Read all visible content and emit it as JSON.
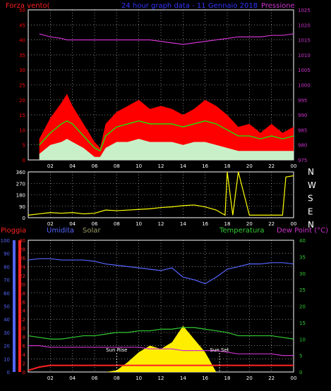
{
  "colors": {
    "background": "#000000",
    "axis": "#ffffff",
    "grid": "#ffffff",
    "wind_gust": "#ff0000",
    "wind_avg": "#00ff00",
    "wind_min": "#c8f0c8",
    "pressure": "#cc33cc",
    "direction": "#ffff00",
    "rain": "#ff2222",
    "humidity": "#5566ff",
    "solar": "#ffee00",
    "temperature": "#33cc33",
    "dew_point": "#cc33cc",
    "sun_marker": "#ffffff"
  },
  "header": {
    "left": "Forza vento(",
    "center": "24 hour graph data - 11 Gennaio 2018",
    "right": "Pressione"
  },
  "dir_labels": [
    "N",
    "W",
    "S",
    "E",
    "N"
  ],
  "bottom_labels": {
    "rain": "Pioggia",
    "humidity": "Umidita",
    "solar": "Solar",
    "temperature": "Temperatura",
    "dew_point": "Dew Point (°C)"
  },
  "sun_rise_label": "Sun Rise",
  "sun_set_label": "Sun Set",
  "x_ticks": [
    "02",
    "04",
    "06",
    "08",
    "10",
    "12",
    "14",
    "16",
    "18",
    "20",
    "22",
    "00"
  ],
  "chart_data": [
    {
      "type": "line",
      "name": "wind-pressure",
      "x_hours": [
        1,
        2,
        3,
        3.5,
        4,
        5,
        6,
        6.5,
        7,
        8,
        9,
        10,
        11,
        12,
        13,
        14,
        15,
        16,
        17,
        18,
        19,
        20,
        21,
        22,
        23,
        24
      ],
      "series": [
        {
          "name": "gust",
          "values": [
            7,
            14,
            19,
            22,
            18,
            12,
            6,
            4,
            12,
            16,
            18,
            20,
            17,
            18,
            17,
            15,
            17,
            20,
            18,
            15,
            11,
            12,
            9,
            12,
            9,
            11
          ]
        },
        {
          "name": "average",
          "values": [
            5,
            9,
            12,
            13,
            12,
            8,
            4,
            3,
            8,
            11,
            12,
            13,
            12,
            12,
            12,
            11,
            12,
            13,
            12,
            10,
            8,
            8,
            7,
            8,
            7,
            8
          ]
        },
        {
          "name": "minimum",
          "values": [
            2,
            5,
            6,
            7,
            6,
            4,
            1,
            1,
            4,
            6,
            6,
            7,
            6,
            6,
            6,
            5,
            6,
            6,
            5,
            4,
            3,
            3,
            3,
            3,
            3,
            3
          ]
        },
        {
          "name": "pressure",
          "values": [
            1017,
            1016,
            1015.5,
            1015,
            1015,
            1015,
            1015,
            1015,
            1015,
            1015,
            1015,
            1015,
            1015,
            1014.5,
            1014,
            1013.5,
            1014,
            1014.5,
            1015,
            1015.5,
            1016,
            1016,
            1016,
            1016.5,
            1016.5,
            1017
          ]
        }
      ],
      "ylim_left": [
        0,
        50
      ],
      "yticks_left": [
        0,
        5,
        10,
        15,
        20,
        25,
        30,
        35,
        40,
        45,
        50
      ],
      "ylim_right": [
        975,
        1025
      ],
      "yticks_right": [
        975,
        980,
        985,
        990,
        995,
        1000,
        1005,
        1010,
        1015,
        1020,
        1025
      ]
    },
    {
      "type": "line",
      "name": "direction",
      "x_hours": [
        0,
        1,
        2,
        3,
        4,
        5,
        6,
        7,
        8,
        9,
        10,
        11,
        12,
        13,
        14,
        15,
        16,
        17,
        17.8,
        18,
        18.5,
        19,
        20,
        21,
        22,
        23,
        23.3,
        24
      ],
      "series": [
        {
          "name": "direction",
          "values": [
            20,
            30,
            40,
            35,
            40,
            30,
            35,
            60,
            55,
            60,
            65,
            70,
            80,
            85,
            95,
            100,
            85,
            60,
            20,
            360,
            20,
            360,
            20,
            20,
            20,
            20,
            320,
            330
          ]
        }
      ],
      "ylim": [
        0,
        360
      ],
      "yticks": [
        0,
        90,
        180,
        270,
        360
      ]
    },
    {
      "type": "area",
      "name": "climate",
      "x_hours": [
        0,
        1,
        2,
        3,
        4,
        5,
        6,
        7,
        8,
        9,
        10,
        11,
        12,
        13,
        14,
        15,
        16,
        17,
        18,
        19,
        20,
        21,
        22,
        23,
        24
      ],
      "series": [
        {
          "name": "humidity",
          "values": [
            85,
            86,
            86,
            85,
            85,
            85,
            84,
            82,
            81,
            80,
            79,
            78,
            77,
            79,
            72,
            70,
            67,
            72,
            78,
            80,
            82,
            82,
            83,
            83,
            82
          ]
        },
        {
          "name": "temperature",
          "values": [
            11,
            10.5,
            10,
            10,
            10.5,
            11,
            11,
            11.5,
            12,
            12,
            12.5,
            12.5,
            13,
            13,
            13.5,
            13.5,
            13,
            12.5,
            12,
            11,
            11,
            11,
            11,
            10.5,
            10
          ]
        },
        {
          "name": "dew_point",
          "values": [
            8,
            8,
            7.5,
            7.5,
            7.5,
            7.5,
            7.5,
            7.5,
            7.5,
            7.5,
            7.5,
            7,
            7,
            7,
            6.5,
            6.5,
            6.5,
            6.5,
            6,
            5.5,
            5.5,
            5.5,
            5.5,
            5,
            5
          ]
        },
        {
          "name": "rain",
          "values": [
            0.5,
            1.5,
            2,
            2,
            2,
            2,
            2,
            2,
            2,
            2,
            2,
            2,
            2,
            2,
            2,
            2,
            2,
            2,
            2,
            2,
            2,
            2,
            2,
            2,
            2
          ]
        },
        {
          "name": "solar",
          "values": [
            0,
            0,
            0,
            0,
            0,
            0,
            0,
            0,
            0.5,
            3,
            6,
            8,
            7,
            9,
            14,
            10,
            6,
            0,
            0,
            0,
            0,
            0,
            0,
            0,
            0
          ]
        }
      ],
      "ylim_left": [
        0,
        100
      ],
      "yticks_left": [
        0,
        10,
        20,
        30,
        40,
        50,
        60,
        70,
        80,
        90,
        100
      ],
      "ylim_rain": [
        0,
        30
      ],
      "yticks_rain": [
        0,
        2,
        4,
        6,
        8,
        10,
        12,
        14,
        16,
        18,
        20,
        22,
        24,
        26,
        28,
        30
      ],
      "ylim_right": [
        0,
        40
      ],
      "yticks_right": [
        0,
        5,
        10,
        15,
        20,
        25,
        30,
        35,
        40
      ],
      "sun_rise_hour": 8,
      "sun_set_hour": 17.3
    }
  ]
}
